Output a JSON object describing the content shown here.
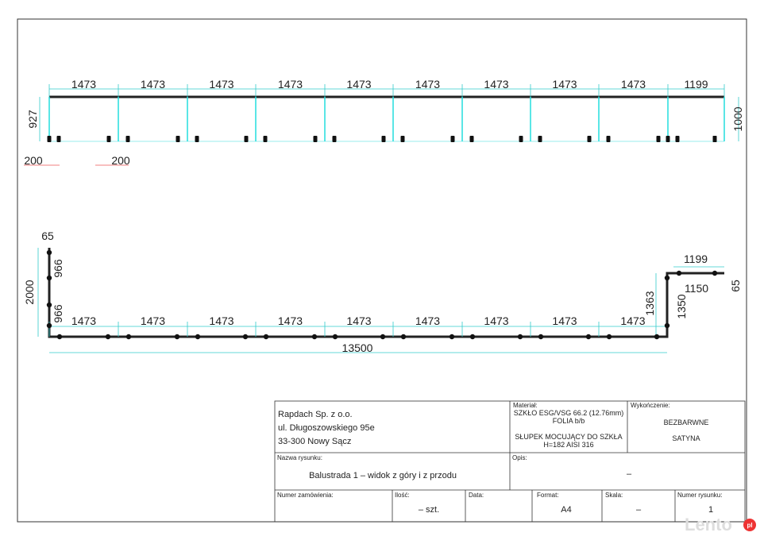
{
  "front_view": {
    "spans": [
      1473,
      1473,
      1473,
      1473,
      1473,
      1473,
      1473,
      1473,
      1473,
      1199
    ],
    "height_left": 927,
    "height_right": 1000,
    "post_offsets": [
      200,
      200
    ]
  },
  "top_view": {
    "start_offset": 65,
    "left_segments": [
      966,
      966
    ],
    "left_total": 2000,
    "spans": [
      1473,
      1473,
      1473,
      1473,
      1473,
      1473,
      1473,
      1473,
      1473
    ],
    "total": 13500,
    "right_inner": 1363,
    "right_outer": 1350,
    "top_right": 1199,
    "top_right_inner": 1150,
    "end_offset": 65
  },
  "title_block": {
    "company": [
      "Rapdach Sp. z o.o.",
      "ul. Długoszowskiego 95e",
      "33-300 Nowy Sącz"
    ],
    "material": {
      "label": "Materiał:",
      "lines": [
        "SZKŁO ESG/VSG 66.2 (12.76mm)",
        "FOLIA b/b",
        "SŁUPEK MOCUJĄCY DO SZKŁA",
        "H=182 AISI 316"
      ]
    },
    "finish": {
      "label": "Wykończenie:",
      "lines": [
        "BEZBARWNE",
        "SATYNA"
      ]
    },
    "drawing_name": {
      "label": "Nazwa rysunku:",
      "value": "Balustrada 1 – widok z góry i z przodu"
    },
    "description": {
      "label": "Opis:",
      "value": "–"
    },
    "order_number": {
      "label": "Numer zamówienia:"
    },
    "quantity": {
      "label": "Ilość:",
      "value": "– szt."
    },
    "date": {
      "label": "Data:"
    },
    "format": {
      "label": "Format:",
      "value": "A4"
    },
    "scale": {
      "label": "Skala:",
      "value": "–"
    },
    "drawing_number": {
      "label": "Numer rysunku:",
      "value": "1"
    }
  },
  "watermark": {
    "brand": "Lento",
    "suffix": "pl"
  }
}
